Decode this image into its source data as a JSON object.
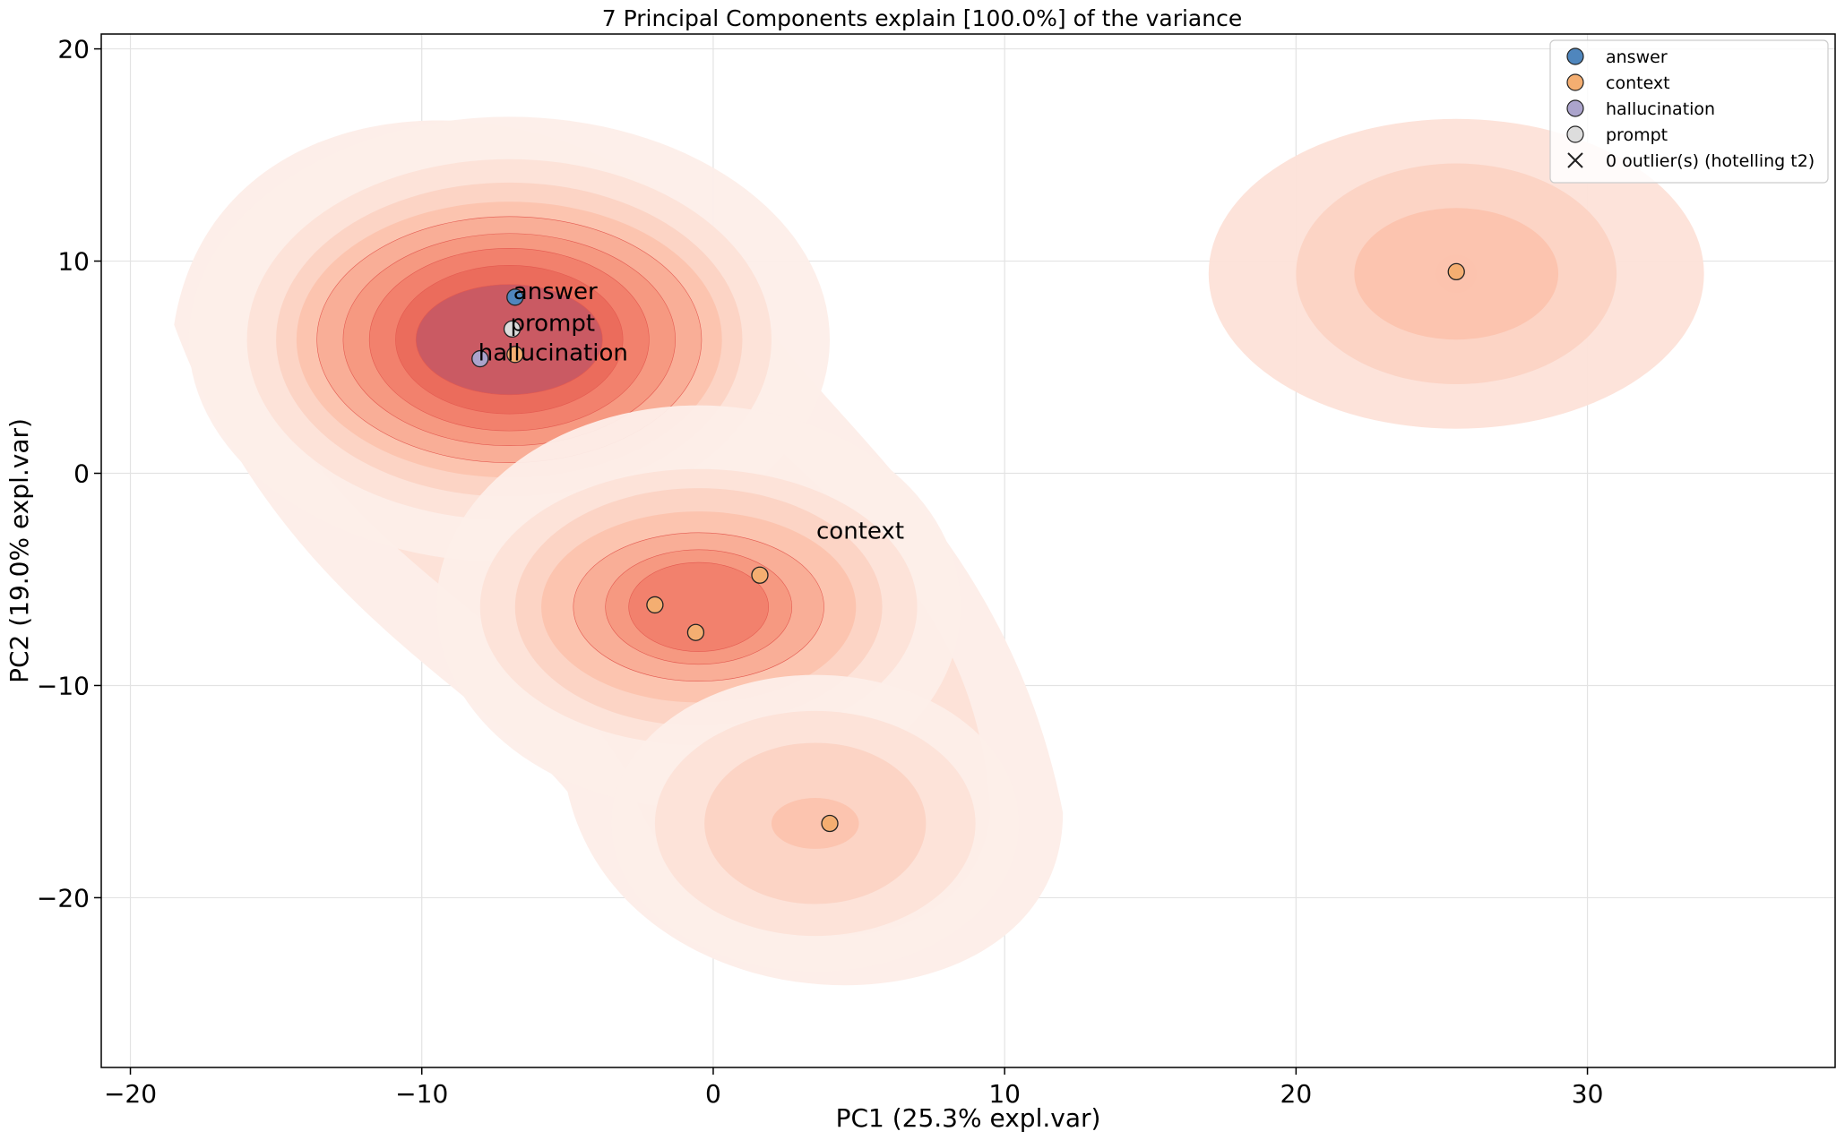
{
  "chart_data": {
    "type": "scatter",
    "title": "7 Principal Components explain [100.0%] of the variance",
    "xlabel": "PC1 (25.3% expl.var)",
    "ylabel": "PC2 (19.0% expl.var)",
    "xlim": [
      -21,
      38.5
    ],
    "ylim": [
      -28,
      20.7
    ],
    "xticks": [
      -20,
      -10,
      0,
      10,
      20,
      30
    ],
    "yticks": [
      -20,
      -10,
      0,
      10,
      20
    ],
    "xtick_labels": [
      "−20",
      "−10",
      "0",
      "10",
      "20",
      "30"
    ],
    "ytick_labels": [
      "−20",
      "−10",
      "0",
      "10",
      "20"
    ],
    "grid": true,
    "legend_position": "top-right",
    "series": [
      {
        "name": "answer",
        "color": "#4f86bd",
        "points": [
          [
            -6.8,
            8.3
          ]
        ]
      },
      {
        "name": "context",
        "color": "#f4ae71",
        "points": [
          [
            -6.8,
            5.6
          ],
          [
            -2.0,
            -6.2
          ],
          [
            -0.6,
            -7.5
          ],
          [
            1.6,
            -4.8
          ],
          [
            4.0,
            -16.5
          ],
          [
            25.5,
            9.5
          ]
        ]
      },
      {
        "name": "hallucination",
        "color": "#aba4cc",
        "points": [
          [
            -8.0,
            5.4
          ]
        ]
      },
      {
        "name": "prompt",
        "color": "#dddddd",
        "points": [
          [
            -6.9,
            6.8
          ]
        ]
      }
    ],
    "outlier_legend": "0 outlier(s) (hotelling t2)",
    "annotations": [
      {
        "text": "answer",
        "x": -6.8,
        "y": 8.3
      },
      {
        "text": "prompt",
        "x": -6.9,
        "y": 6.8
      },
      {
        "text": "hallucination",
        "x": -8.0,
        "y": 5.4
      },
      {
        "text": "context",
        "x": 3.6,
        "y": -3.0
      }
    ],
    "density": {
      "colormap": "Reds",
      "peaks": [
        {
          "cx": -7.0,
          "cy": 6.3
        },
        {
          "cx": -0.5,
          "cy": -6.3
        },
        {
          "cx": 3.5,
          "cy": -16.5
        },
        {
          "cx": 25.5,
          "cy": 9.4
        }
      ]
    }
  }
}
